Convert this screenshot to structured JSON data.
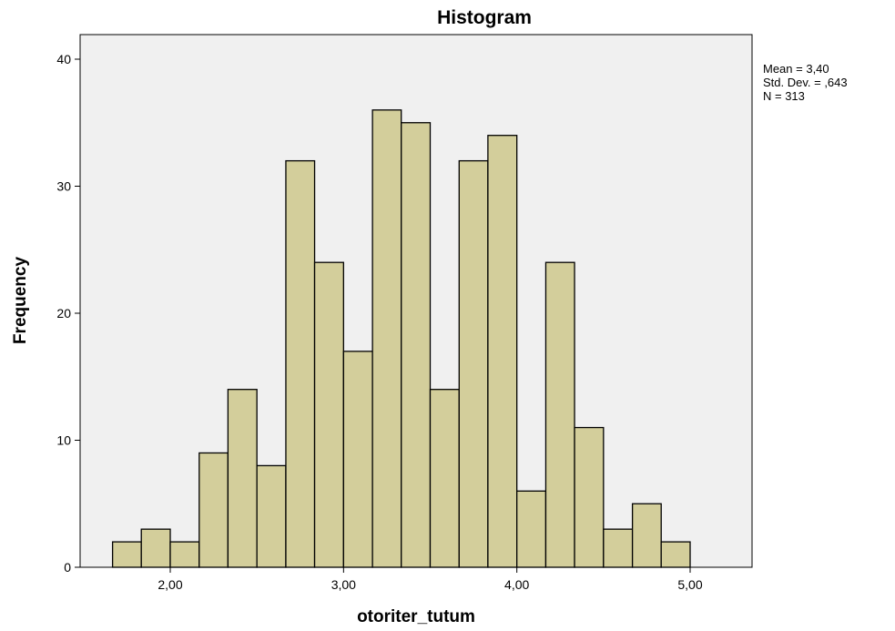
{
  "chart_data": {
    "type": "bar",
    "title": "Histogram",
    "xlabel": "otoriter_tutum",
    "ylabel": "Frequency",
    "bin_width": 0.1667,
    "bins": [
      {
        "start": 1.667,
        "end": 1.833,
        "value": 2
      },
      {
        "start": 1.833,
        "end": 2.0,
        "value": 3
      },
      {
        "start": 2.0,
        "end": 2.167,
        "value": 2
      },
      {
        "start": 2.167,
        "end": 2.333,
        "value": 9
      },
      {
        "start": 2.333,
        "end": 2.5,
        "value": 14
      },
      {
        "start": 2.5,
        "end": 2.667,
        "value": 8
      },
      {
        "start": 2.667,
        "end": 2.833,
        "value": 32
      },
      {
        "start": 2.833,
        "end": 3.0,
        "value": 24
      },
      {
        "start": 3.0,
        "end": 3.167,
        "value": 17
      },
      {
        "start": 3.167,
        "end": 3.333,
        "value": 36
      },
      {
        "start": 3.333,
        "end": 3.5,
        "value": 35
      },
      {
        "start": 3.5,
        "end": 3.667,
        "value": 14
      },
      {
        "start": 3.667,
        "end": 3.833,
        "value": 32
      },
      {
        "start": 3.833,
        "end": 4.0,
        "value": 34
      },
      {
        "start": 4.0,
        "end": 4.167,
        "value": 6
      },
      {
        "start": 4.167,
        "end": 4.333,
        "value": 24
      },
      {
        "start": 4.333,
        "end": 4.5,
        "value": 11
      },
      {
        "start": 4.5,
        "end": 4.667,
        "value": 3
      },
      {
        "start": 4.667,
        "end": 4.833,
        "value": 5
      },
      {
        "start": 4.833,
        "end": 5.0,
        "value": 2
      }
    ],
    "xlim": [
      1.47,
      5.35
    ],
    "ylim": [
      0,
      42
    ],
    "x_ticks": [
      2,
      3,
      4,
      5
    ],
    "x_tick_labels": [
      "2,00",
      "3,00",
      "4,00",
      "5,00"
    ],
    "y_ticks": [
      0,
      10,
      20,
      30,
      40
    ],
    "y_tick_labels": [
      "0",
      "10",
      "20",
      "30",
      "40"
    ],
    "grid": false,
    "legend": "none",
    "stats": [
      "Mean = 3,40",
      "Std. Dev. = ,643",
      "N = 313"
    ]
  },
  "colors": {
    "bar_fill": "#d3ce9b",
    "bar_stroke": "#000000",
    "plot_background": "#f0f0f0",
    "frame": "#000000"
  }
}
